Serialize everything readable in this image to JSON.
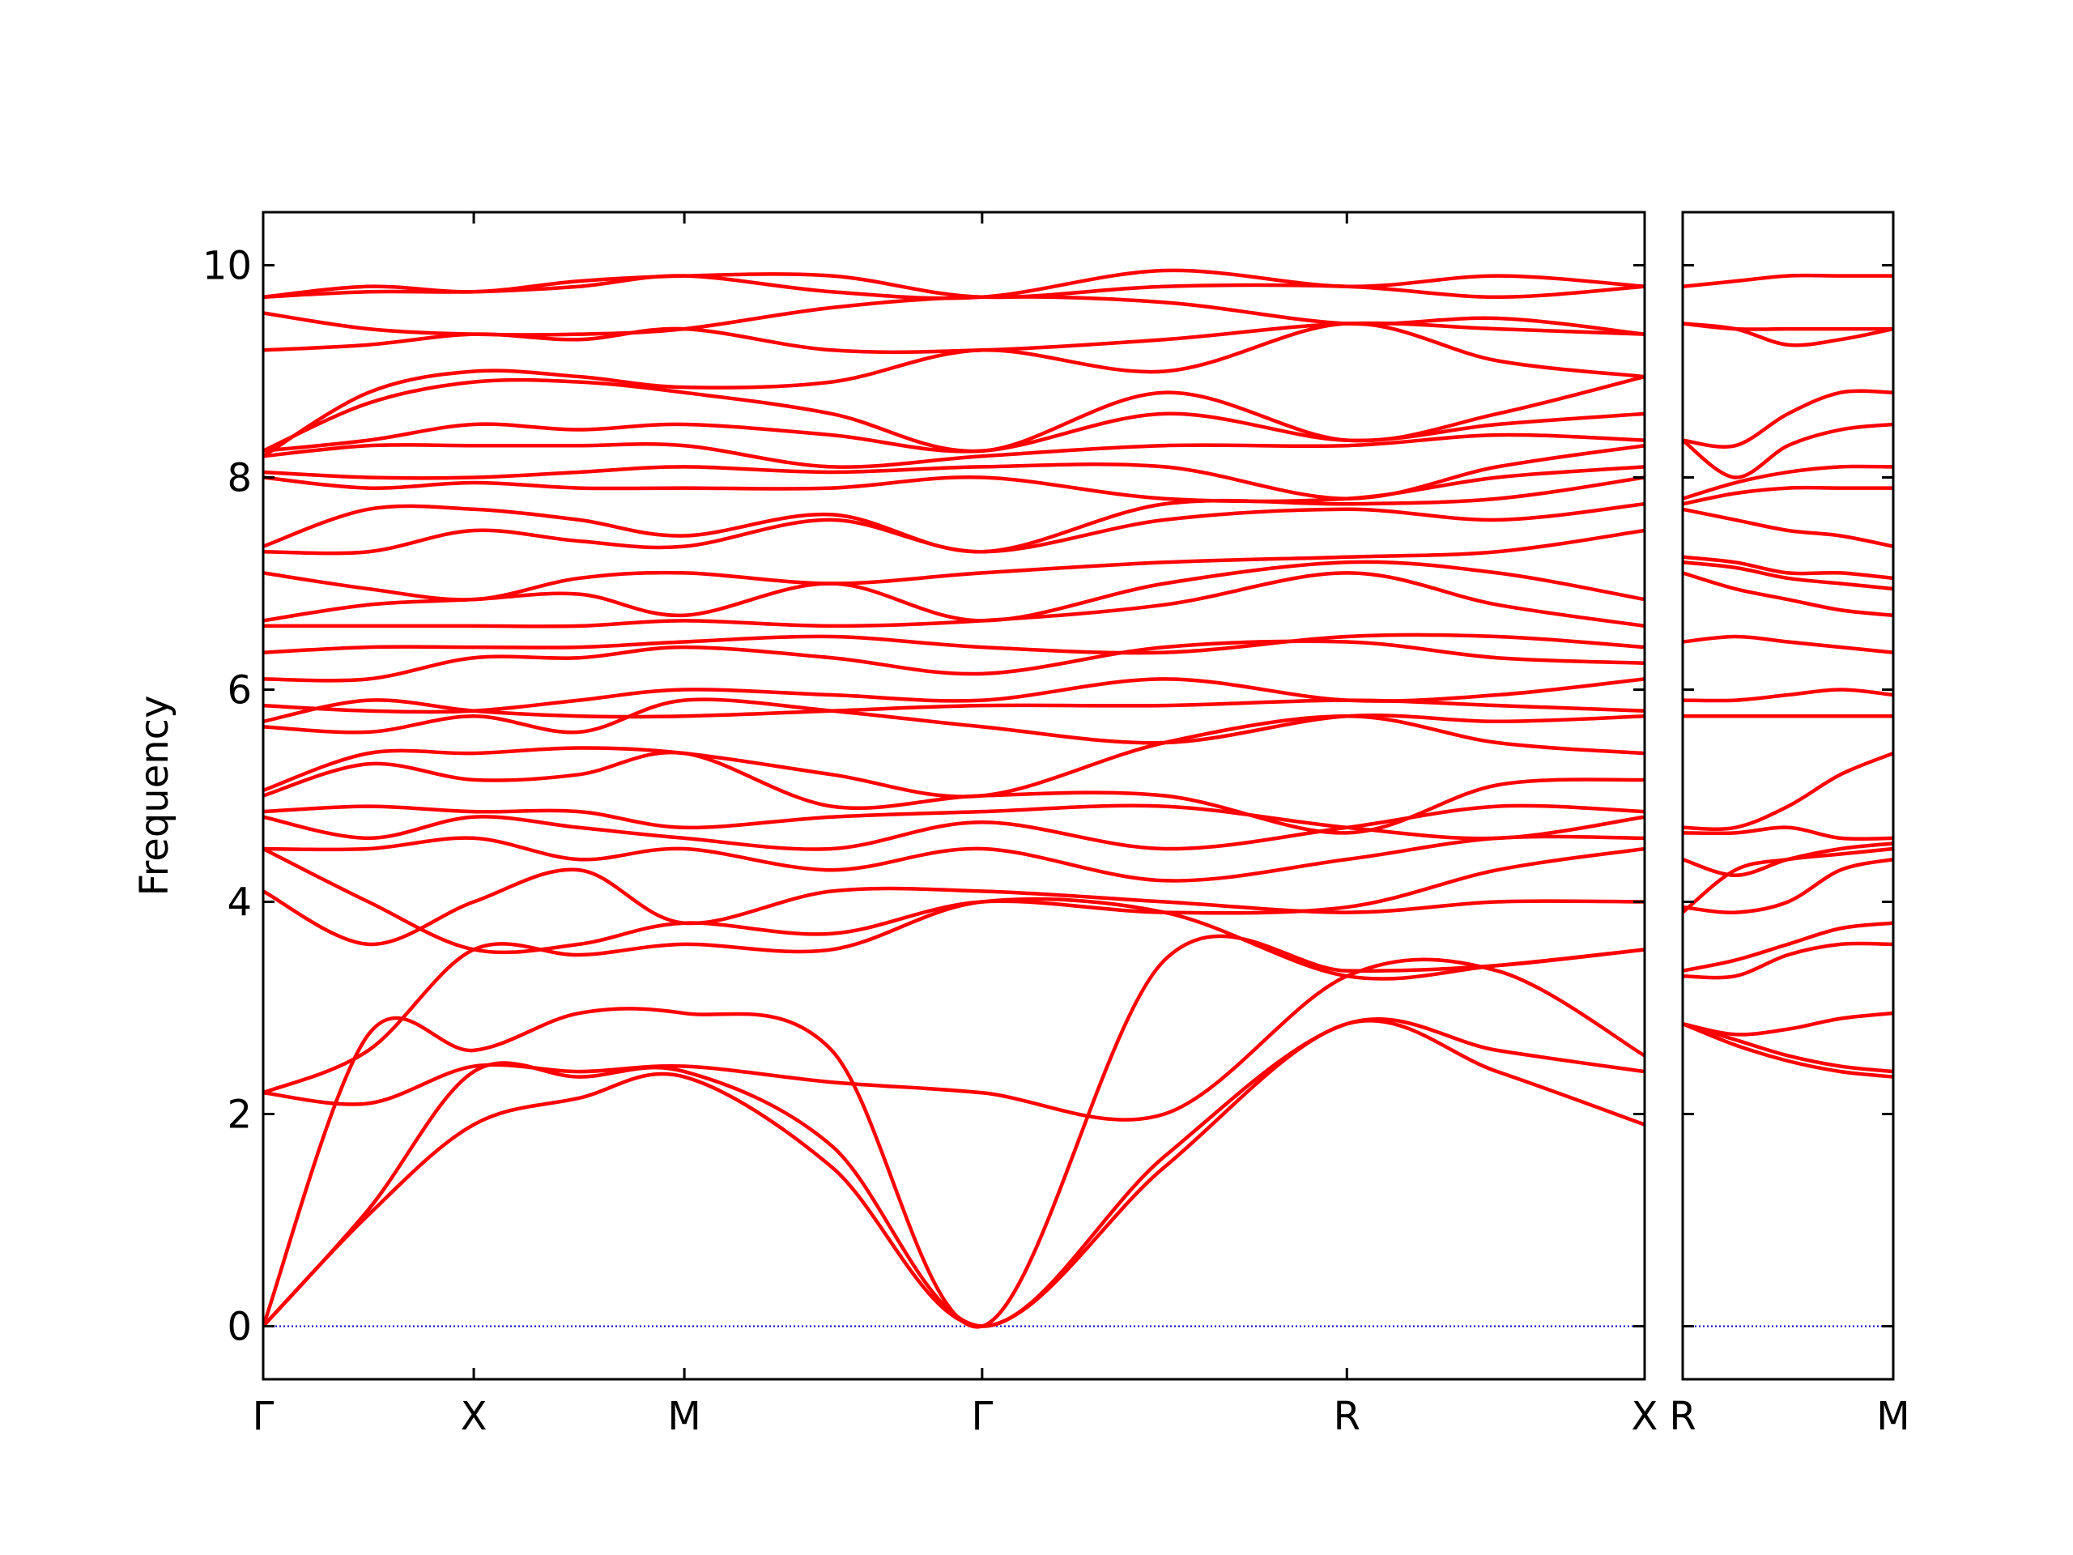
{
  "chart_data": [
    {
      "type": "line",
      "ylabel": "Frequency",
      "color": "#ff0000",
      "zero_line_color": "#0000cc",
      "xlim": [
        0,
        3.28
      ],
      "ylim": [
        -0.5,
        10.5
      ],
      "yticks": [
        0,
        2,
        4,
        6,
        8,
        10
      ],
      "ytick_labels": true,
      "xticks": [
        {
          "value": 0,
          "label": "Γ"
        },
        {
          "value": 0.5,
          "label": "X"
        },
        {
          "value": 1.0,
          "label": "M"
        },
        {
          "value": 1.707,
          "label": "Γ"
        },
        {
          "value": 2.573,
          "label": "R"
        },
        {
          "value": 3.28,
          "label": "X"
        }
      ],
      "x": [
        0,
        0.25,
        0.5,
        0.75,
        1.0,
        1.35,
        1.707,
        2.14,
        2.573,
        2.93,
        3.28
      ],
      "series": [
        {
          "values": [
            0,
            1.05,
            1.9,
            2.15,
            2.35,
            1.5,
            0,
            1.5,
            2.85,
            2.4,
            1.9
          ]
        },
        {
          "values": [
            0,
            1.1,
            2.4,
            2.35,
            2.4,
            1.7,
            0,
            1.6,
            2.85,
            2.6,
            2.4
          ]
        },
        {
          "values": [
            0,
            2.75,
            2.6,
            2.95,
            2.95,
            2.6,
            0,
            3.45,
            3.35,
            3.4,
            3.55
          ]
        },
        {
          "values": [
            2.2,
            2.1,
            2.45,
            2.4,
            2.45,
            2.3,
            2.2,
            2.0,
            3.3,
            3.35,
            2.55
          ]
        },
        {
          "values": [
            2.2,
            2.6,
            3.55,
            3.5,
            3.6,
            3.55,
            4.0,
            3.9,
            3.3,
            3.4,
            3.55
          ]
        },
        {
          "values": [
            4.1,
            3.6,
            4.0,
            4.3,
            3.8,
            4.1,
            4.1,
            4.0,
            3.9,
            4.0,
            4.0
          ]
        },
        {
          "values": [
            4.5,
            4.0,
            3.55,
            3.6,
            3.8,
            3.7,
            4.0,
            3.9,
            3.95,
            4.3,
            4.5
          ]
        },
        {
          "values": [
            4.5,
            4.5,
            4.6,
            4.4,
            4.5,
            4.3,
            4.5,
            4.2,
            4.4,
            4.6,
            4.6
          ]
        },
        {
          "values": [
            4.8,
            4.6,
            4.8,
            4.7,
            4.6,
            4.5,
            4.75,
            4.5,
            4.7,
            4.9,
            4.85
          ]
        },
        {
          "values": [
            4.85,
            4.9,
            4.85,
            4.85,
            4.7,
            4.8,
            4.85,
            4.9,
            4.7,
            4.6,
            4.8
          ]
        },
        {
          "values": [
            5.0,
            5.3,
            5.15,
            5.2,
            5.4,
            4.9,
            5.0,
            5.0,
            4.65,
            5.1,
            5.15
          ]
        },
        {
          "values": [
            5.05,
            5.4,
            5.4,
            5.45,
            5.4,
            5.2,
            5.0,
            5.5,
            5.75,
            5.5,
            5.4
          ]
        },
        {
          "values": [
            5.65,
            5.6,
            5.75,
            5.6,
            5.9,
            5.8,
            5.65,
            5.5,
            5.75,
            5.7,
            5.75
          ]
        },
        {
          "values": [
            5.7,
            5.9,
            5.8,
            5.75,
            5.75,
            5.8,
            5.85,
            5.85,
            5.9,
            5.85,
            5.8
          ]
        },
        {
          "values": [
            5.85,
            5.8,
            5.8,
            5.9,
            6.0,
            5.95,
            5.9,
            6.1,
            5.9,
            5.95,
            6.1
          ]
        },
        {
          "values": [
            6.1,
            6.1,
            6.3,
            6.3,
            6.4,
            6.3,
            6.15,
            6.4,
            6.45,
            6.3,
            6.25
          ]
        },
        {
          "values": [
            6.35,
            6.4,
            6.4,
            6.4,
            6.45,
            6.5,
            6.4,
            6.35,
            6.5,
            6.5,
            6.4
          ]
        },
        {
          "values": [
            6.6,
            6.6,
            6.6,
            6.6,
            6.65,
            6.6,
            6.65,
            6.8,
            7.1,
            6.8,
            6.6
          ]
        },
        {
          "values": [
            6.65,
            6.8,
            6.85,
            6.9,
            6.7,
            7.0,
            6.65,
            7.0,
            7.2,
            7.1,
            6.85
          ]
        },
        {
          "values": [
            7.1,
            6.95,
            6.85,
            7.05,
            7.1,
            7.0,
            7.1,
            7.2,
            7.25,
            7.3,
            7.5
          ]
        },
        {
          "values": [
            7.3,
            7.3,
            7.5,
            7.4,
            7.35,
            7.6,
            7.3,
            7.6,
            7.7,
            7.6,
            7.75
          ]
        },
        {
          "values": [
            7.35,
            7.7,
            7.7,
            7.6,
            7.45,
            7.65,
            7.3,
            7.75,
            7.75,
            7.8,
            8.0
          ]
        },
        {
          "values": [
            8.0,
            7.9,
            7.95,
            7.9,
            7.9,
            7.9,
            8.0,
            7.8,
            7.8,
            8.0,
            8.1
          ]
        },
        {
          "values": [
            8.05,
            8.0,
            8.0,
            8.05,
            8.1,
            8.05,
            8.1,
            8.1,
            7.8,
            8.1,
            8.3
          ]
        },
        {
          "values": [
            8.2,
            8.3,
            8.3,
            8.3,
            8.3,
            8.1,
            8.2,
            8.3,
            8.3,
            8.4,
            8.35
          ]
        },
        {
          "values": [
            8.25,
            8.35,
            8.5,
            8.45,
            8.5,
            8.4,
            8.25,
            8.6,
            8.35,
            8.5,
            8.6
          ]
        },
        {
          "values": [
            8.25,
            8.7,
            8.9,
            8.9,
            8.8,
            8.6,
            8.25,
            8.8,
            8.35,
            8.6,
            8.95
          ]
        },
        {
          "values": [
            8.2,
            8.8,
            9.0,
            8.95,
            8.85,
            8.9,
            9.2,
            9.0,
            9.45,
            9.1,
            8.95
          ]
        },
        {
          "values": [
            9.2,
            9.25,
            9.35,
            9.3,
            9.4,
            9.2,
            9.2,
            9.3,
            9.45,
            9.4,
            9.35
          ]
        },
        {
          "values": [
            9.55,
            9.4,
            9.35,
            9.35,
            9.4,
            9.6,
            9.7,
            9.65,
            9.45,
            9.5,
            9.35
          ]
        },
        {
          "values": [
            9.7,
            9.75,
            9.75,
            9.8,
            9.9,
            9.75,
            9.7,
            9.95,
            9.8,
            9.9,
            9.8
          ]
        },
        {
          "values": [
            9.7,
            9.8,
            9.75,
            9.85,
            9.9,
            9.9,
            9.7,
            9.8,
            9.8,
            9.7,
            9.8
          ]
        }
      ]
    },
    {
      "type": "line",
      "color": "#ff0000",
      "zero_line_color": "#0000cc",
      "xlim": [
        0,
        0.5
      ],
      "ylim": [
        -0.5,
        10.5
      ],
      "yticks": [
        0,
        2,
        4,
        6,
        8,
        10
      ],
      "ytick_labels": false,
      "xticks": [
        {
          "value": 0,
          "label": "R"
        },
        {
          "value": 0.5,
          "label": "M"
        }
      ],
      "x": [
        0,
        0.125,
        0.25,
        0.375,
        0.5
      ],
      "series": [
        {
          "values": [
            2.85,
            2.7,
            2.55,
            2.45,
            2.4
          ]
        },
        {
          "values": [
            2.85,
            2.65,
            2.5,
            2.4,
            2.35
          ]
        },
        {
          "values": [
            2.85,
            2.75,
            2.8,
            2.9,
            2.95
          ]
        },
        {
          "values": [
            3.3,
            3.3,
            3.5,
            3.6,
            3.6
          ]
        },
        {
          "values": [
            3.35,
            3.45,
            3.6,
            3.75,
            3.8
          ]
        },
        {
          "values": [
            3.9,
            4.3,
            4.4,
            4.45,
            4.5
          ]
        },
        {
          "values": [
            3.95,
            3.9,
            4.0,
            4.3,
            4.4
          ]
        },
        {
          "values": [
            4.4,
            4.25,
            4.4,
            4.5,
            4.55
          ]
        },
        {
          "values": [
            4.65,
            4.65,
            4.7,
            4.6,
            4.6
          ]
        },
        {
          "values": [
            4.7,
            4.7,
            4.9,
            5.2,
            5.4
          ]
        },
        {
          "values": [
            5.75,
            5.75,
            5.75,
            5.75,
            5.75
          ]
        },
        {
          "values": [
            5.9,
            5.9,
            5.95,
            6.0,
            5.95
          ]
        },
        {
          "values": [
            6.45,
            6.5,
            6.45,
            6.4,
            6.35
          ]
        },
        {
          "values": [
            7.1,
            6.95,
            6.85,
            6.75,
            6.7
          ]
        },
        {
          "values": [
            7.2,
            7.15,
            7.05,
            7.0,
            6.95
          ]
        },
        {
          "values": [
            7.25,
            7.2,
            7.1,
            7.1,
            7.05
          ]
        },
        {
          "values": [
            7.7,
            7.6,
            7.5,
            7.45,
            7.35
          ]
        },
        {
          "values": [
            7.75,
            7.85,
            7.9,
            7.9,
            7.9
          ]
        },
        {
          "values": [
            7.8,
            7.95,
            8.05,
            8.1,
            8.1
          ]
        },
        {
          "values": [
            8.35,
            8.0,
            8.3,
            8.45,
            8.5
          ]
        },
        {
          "values": [
            8.35,
            8.3,
            8.6,
            8.8,
            8.8
          ]
        },
        {
          "values": [
            9.45,
            9.4,
            9.25,
            9.3,
            9.4
          ]
        },
        {
          "values": [
            9.45,
            9.4,
            9.4,
            9.4,
            9.4
          ]
        },
        {
          "values": [
            9.8,
            9.85,
            9.9,
            9.9,
            9.9
          ]
        }
      ]
    }
  ]
}
